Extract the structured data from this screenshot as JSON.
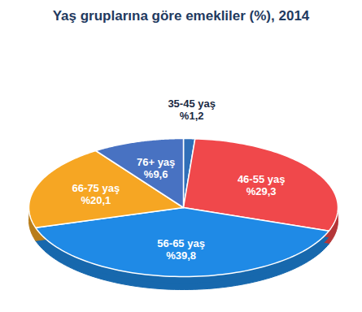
{
  "chart_data": {
    "type": "pie",
    "title": "Yaş gruplarına göre emekliler (%), 2014",
    "categories": [
      "35-45 yaş",
      "46-55 yaş",
      "56-65 yaş",
      "66-75 yaş",
      "76+ yaş"
    ],
    "values": [
      1.2,
      29.3,
      39.8,
      20.1,
      9.6
    ],
    "value_labels": [
      "%1,2",
      "%29,3",
      "%39,8",
      "%20,1",
      "%9,6"
    ],
    "colors": [
      "#2f6fb8",
      "#f0484b",
      "#1f8ae6",
      "#f6a623",
      "#4872c2"
    ],
    "data_labels": true,
    "tick_labels": false
  }
}
